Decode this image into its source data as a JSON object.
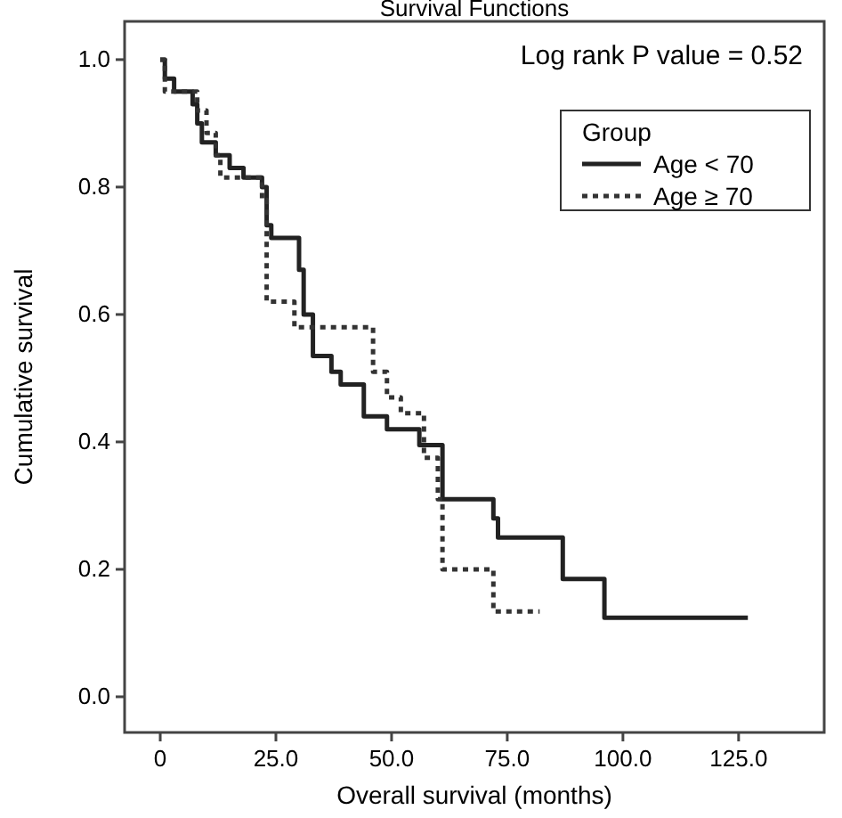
{
  "chart_data": {
    "type": "step",
    "title": "Survival Functions",
    "xlabel": "Overall survival (months)",
    "ylabel": "Cumulative survival",
    "annotations": [
      "Log rank P value = 0.52"
    ],
    "legend_title": "Group",
    "legend": "top right",
    "xlim": [
      -7.7,
      143.5
    ],
    "ylim": [
      -0.056,
      1.06
    ],
    "xticks": [
      0,
      {
        "value": 25,
        "label": "25.0"
      },
      {
        "value": 50,
        "label": "50.0"
      },
      {
        "value": 75,
        "label": "75.0"
      },
      {
        "value": 100,
        "label": "100.0"
      },
      {
        "value": 125,
        "label": "125.0"
      }
    ],
    "yticks": [
      {
        "value": 0,
        "label": "0.0"
      },
      0.2,
      0.4,
      0.6,
      0.8,
      {
        "value": 1,
        "label": "1.0"
      }
    ],
    "grid": false,
    "marker": "none",
    "series": [
      {
        "name": "Age < 70",
        "color": "#222222",
        "line_style": "solid",
        "x": [
          0,
          1,
          3,
          7,
          8,
          9,
          12,
          15,
          18,
          22,
          23,
          24,
          30,
          31,
          33,
          37,
          39,
          44,
          49,
          56,
          61,
          72,
          73,
          87,
          96,
          127
        ],
        "values": [
          1.0,
          0.97,
          0.95,
          0.93,
          0.9,
          0.87,
          0.85,
          0.83,
          0.815,
          0.8,
          0.74,
          0.72,
          0.67,
          0.6,
          0.535,
          0.51,
          0.49,
          0.44,
          0.42,
          0.395,
          0.31,
          0.28,
          0.25,
          0.185,
          0.124,
          0.124
        ]
      },
      {
        "name": "Age ≥ 70",
        "color": "#333333",
        "line_style": "dotted",
        "x": [
          0,
          1,
          8,
          10,
          12,
          13,
          22,
          23,
          29,
          46,
          49,
          52,
          57,
          60,
          61,
          72,
          82
        ],
        "values": [
          1.0,
          0.95,
          0.92,
          0.885,
          0.85,
          0.815,
          0.78,
          0.62,
          0.58,
          0.51,
          0.47,
          0.445,
          0.375,
          0.31,
          0.2,
          0.134,
          0.134
        ]
      }
    ]
  }
}
